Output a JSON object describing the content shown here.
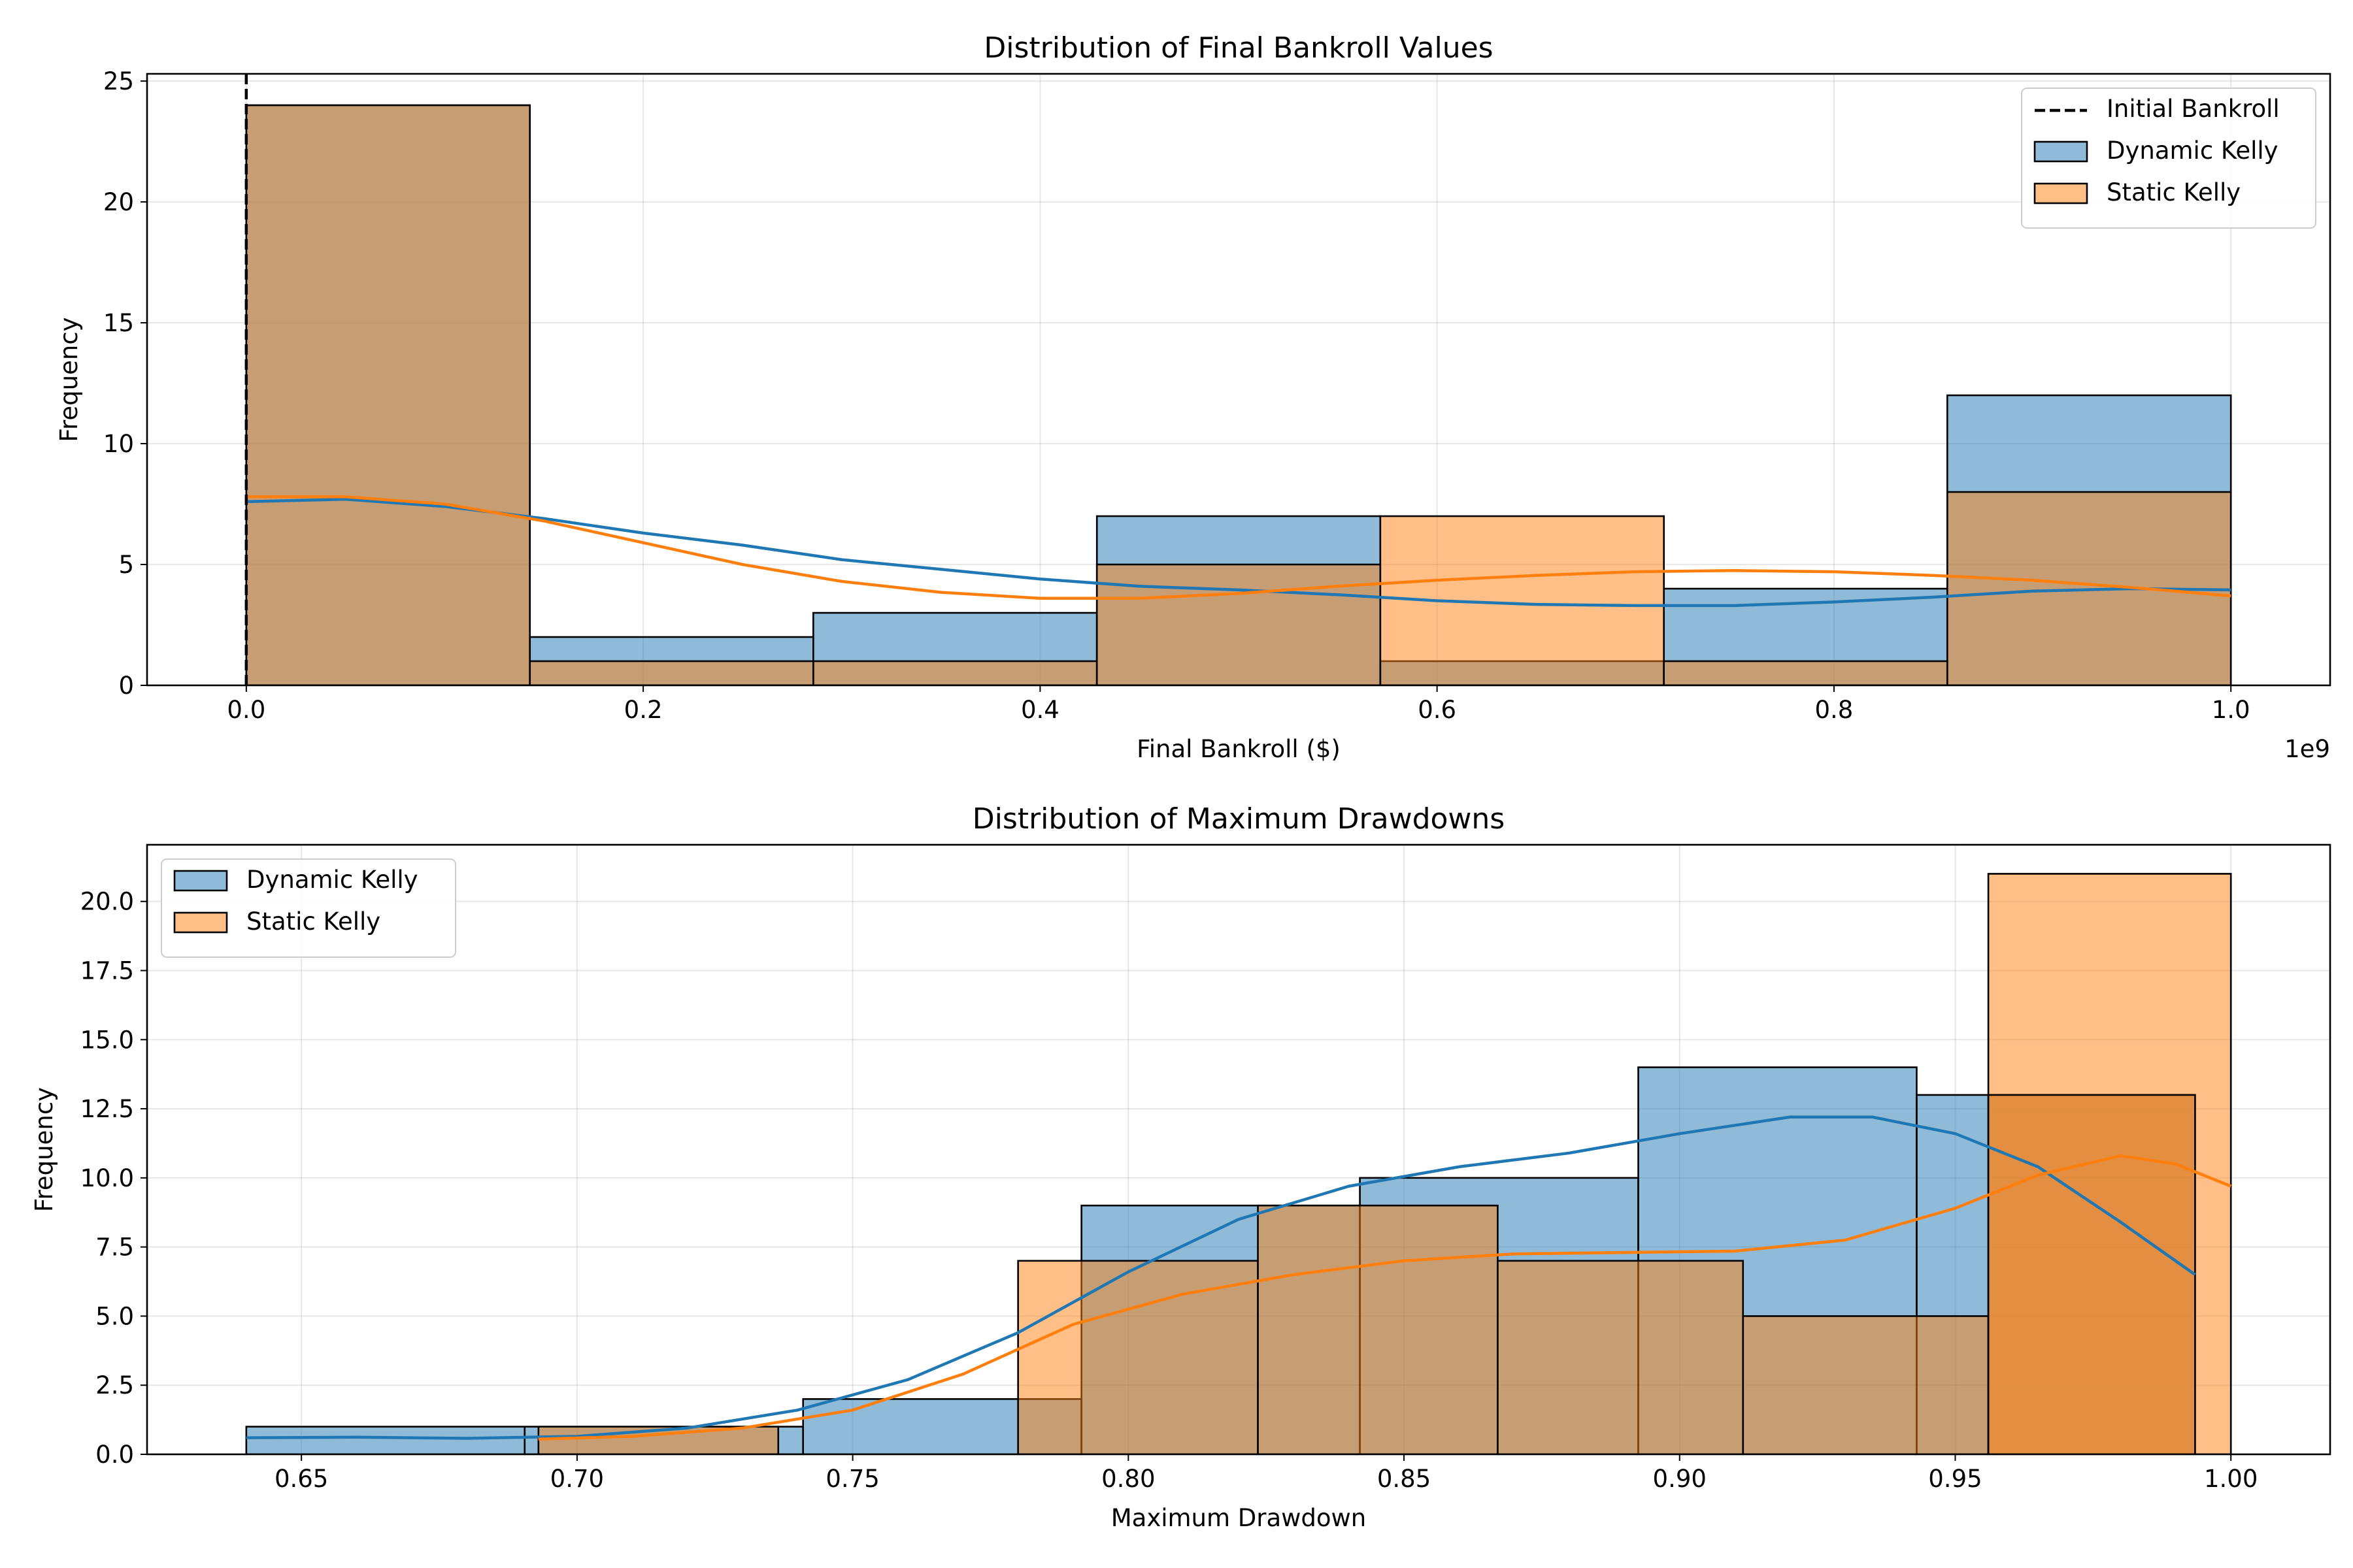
{
  "chart_data": [
    {
      "type": "histogram",
      "title": "Distribution of Final Bankroll Values",
      "xlabel": "Final Bankroll ($)",
      "ylabel": "Frequency",
      "x_offset_label": "1e9",
      "xlim": [
        -0.05,
        1.05
      ],
      "ylim": [
        0,
        25.3
      ],
      "xticks": [
        0.0,
        0.2,
        0.4,
        0.6,
        0.8,
        1.0
      ],
      "xtick_labels": [
        "0.0",
        "0.2",
        "0.4",
        "0.6",
        "0.8",
        "1.0"
      ],
      "yticks": [
        0,
        5,
        10,
        15,
        20,
        25
      ],
      "ytick_labels": [
        "0",
        "5",
        "10",
        "15",
        "20",
        "25"
      ],
      "grid": true,
      "legend_position": "upper right",
      "legend": [
        "Initial Bankroll",
        "Dynamic Kelly",
        "Static Kelly"
      ],
      "vline": {
        "name": "Initial Bankroll",
        "x": 0.0,
        "style": "dashed",
        "color": "#000000"
      },
      "series": [
        {
          "name": "Dynamic Kelly",
          "color": "#1f77b4",
          "bin_edges": [
            0.0,
            0.1429,
            0.2857,
            0.4286,
            0.5714,
            0.7143,
            0.8571,
            1.0
          ],
          "counts": [
            24,
            2,
            3,
            7,
            1,
            4,
            12
          ],
          "kde": [
            [
              0.0,
              7.6
            ],
            [
              0.05,
              7.7
            ],
            [
              0.1,
              7.4
            ],
            [
              0.15,
              6.9
            ],
            [
              0.2,
              6.3
            ],
            [
              0.25,
              5.8
            ],
            [
              0.3,
              5.2
            ],
            [
              0.35,
              4.8
            ],
            [
              0.4,
              4.4
            ],
            [
              0.45,
              4.1
            ],
            [
              0.5,
              3.95
            ],
            [
              0.55,
              3.75
            ],
            [
              0.6,
              3.5
            ],
            [
              0.65,
              3.35
            ],
            [
              0.7,
              3.3
            ],
            [
              0.75,
              3.3
            ],
            [
              0.8,
              3.45
            ],
            [
              0.85,
              3.65
            ],
            [
              0.9,
              3.9
            ],
            [
              0.95,
              4.0
            ],
            [
              1.0,
              3.95
            ]
          ]
        },
        {
          "name": "Static Kelly",
          "color": "#ff7f0e",
          "bin_edges": [
            0.0,
            0.1429,
            0.2857,
            0.4286,
            0.5714,
            0.7143,
            0.8571,
            1.0
          ],
          "counts": [
            24,
            1,
            1,
            5,
            7,
            1,
            8
          ],
          "kde": [
            [
              0.0,
              7.8
            ],
            [
              0.05,
              7.8
            ],
            [
              0.1,
              7.5
            ],
            [
              0.15,
              6.8
            ],
            [
              0.2,
              5.9
            ],
            [
              0.25,
              5.0
            ],
            [
              0.3,
              4.3
            ],
            [
              0.35,
              3.85
            ],
            [
              0.4,
              3.6
            ],
            [
              0.45,
              3.6
            ],
            [
              0.5,
              3.8
            ],
            [
              0.55,
              4.1
            ],
            [
              0.6,
              4.35
            ],
            [
              0.65,
              4.55
            ],
            [
              0.7,
              4.7
            ],
            [
              0.75,
              4.75
            ],
            [
              0.8,
              4.7
            ],
            [
              0.85,
              4.55
            ],
            [
              0.9,
              4.35
            ],
            [
              0.95,
              4.05
            ],
            [
              1.0,
              3.7
            ]
          ]
        }
      ]
    },
    {
      "type": "histogram",
      "title": "Distribution of Maximum Drawdowns",
      "xlabel": "Maximum Drawdown",
      "ylabel": "Frequency",
      "xlim": [
        0.622,
        1.018
      ],
      "ylim": [
        0,
        22.05
      ],
      "xticks": [
        0.65,
        0.7,
        0.75,
        0.8,
        0.85,
        0.9,
        0.95,
        1.0
      ],
      "xtick_labels": [
        "0.65",
        "0.70",
        "0.75",
        "0.80",
        "0.85",
        "0.90",
        "0.95",
        "1.00"
      ],
      "yticks": [
        0,
        2.5,
        5,
        7.5,
        10,
        12.5,
        15,
        17.5,
        20
      ],
      "ytick_labels": [
        "0.0",
        "2.5",
        "5.0",
        "7.5",
        "10.0",
        "12.5",
        "15.0",
        "17.5",
        "20.0"
      ],
      "grid": true,
      "legend_position": "upper left",
      "legend": [
        "Dynamic Kelly",
        "Static Kelly"
      ],
      "series": [
        {
          "name": "Dynamic Kelly",
          "color": "#1f77b4",
          "bin_edges": [
            0.64,
            0.6905,
            0.741,
            0.7915,
            0.842,
            0.8925,
            0.943,
            0.9935
          ],
          "counts": [
            1,
            1,
            2,
            9,
            10,
            14,
            13
          ],
          "kde": [
            [
              0.64,
              0.6
            ],
            [
              0.66,
              0.62
            ],
            [
              0.68,
              0.58
            ],
            [
              0.7,
              0.65
            ],
            [
              0.72,
              0.95
            ],
            [
              0.74,
              1.6
            ],
            [
              0.76,
              2.7
            ],
            [
              0.78,
              4.4
            ],
            [
              0.8,
              6.6
            ],
            [
              0.82,
              8.5
            ],
            [
              0.84,
              9.7
            ],
            [
              0.86,
              10.4
            ],
            [
              0.88,
              10.9
            ],
            [
              0.9,
              11.6
            ],
            [
              0.92,
              12.2
            ],
            [
              0.935,
              12.2
            ],
            [
              0.95,
              11.6
            ],
            [
              0.965,
              10.4
            ],
            [
              0.98,
              8.4
            ],
            [
              0.9935,
              6.5
            ]
          ]
        },
        {
          "name": "Static Kelly",
          "color": "#ff7f0e",
          "bin_edges": [
            0.693,
            0.7365,
            0.78,
            0.8235,
            0.867,
            0.9115,
            0.956,
            1.0
          ],
          "counts": [
            1,
            0,
            7,
            9,
            7,
            5,
            21
          ],
          "kde": [
            [
              0.693,
              0.55
            ],
            [
              0.71,
              0.65
            ],
            [
              0.73,
              0.95
            ],
            [
              0.75,
              1.6
            ],
            [
              0.77,
              2.9
            ],
            [
              0.79,
              4.7
            ],
            [
              0.81,
              5.8
            ],
            [
              0.83,
              6.5
            ],
            [
              0.85,
              7.0
            ],
            [
              0.87,
              7.25
            ],
            [
              0.89,
              7.3
            ],
            [
              0.91,
              7.35
            ],
            [
              0.93,
              7.75
            ],
            [
              0.95,
              8.9
            ],
            [
              0.965,
              10.1
            ],
            [
              0.98,
              10.8
            ],
            [
              0.99,
              10.5
            ],
            [
              1.0,
              9.7
            ]
          ]
        },
        {
          "name": "Static Kelly",
          "color": "#ff7f0e",
          "bin_edges": [
            0.956,
            0.9935
          ],
          "counts": [
            13
          ],
          "note_overlay": true
        }
      ]
    }
  ]
}
